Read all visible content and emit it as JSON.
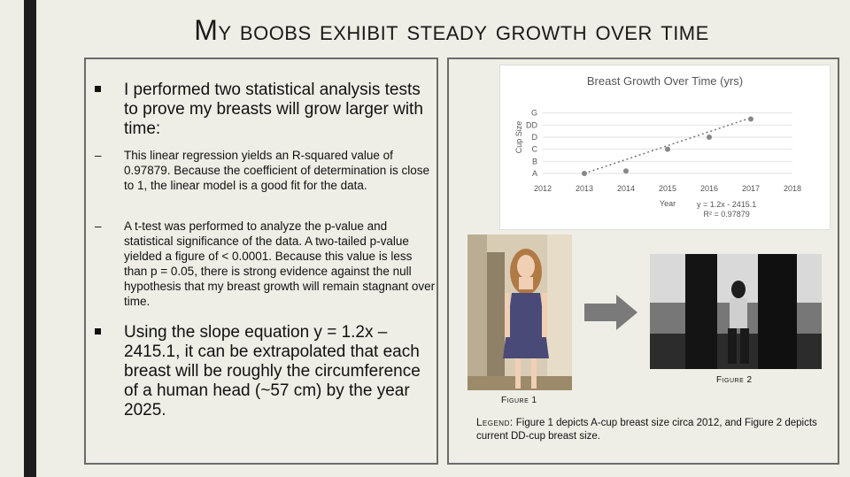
{
  "title": "My boobs exhibit steady growth over time",
  "left": {
    "bullet1": "I performed two statistical analysis tests to prove my breasts will grow larger with time:",
    "sub1": "This linear regression yields an R-squared value of 0.97879. Because the coefficient of determination is close to 1, the linear model is a good fit for the data.",
    "sub2": "A t-test was performed to analyze the p-value and statistical significance of the data. A two-tailed p-value yielded a figure of < 0.0001. Because this value is less than p = 0.05, there is strong evidence against the null hypothesis that my breast growth will remain stagnant over time.",
    "bullet2": "Using the slope equation y = 1.2x – 2415.1, it can be extrapolated that each breast will be roughly the circumference of a human head (~57 cm) by the year 2025.",
    "dash": "–"
  },
  "chart_data": {
    "type": "scatter",
    "title": "Breast Growth Over Time (yrs)",
    "xlabel": "Year",
    "ylabel": "Cup Size",
    "x_ticks": [
      "2012",
      "2013",
      "2014",
      "2015",
      "2016",
      "2017",
      "2018"
    ],
    "y_ticks": [
      "A",
      "B",
      "C",
      "D",
      "DD",
      "G"
    ],
    "xlim": [
      2012,
      2018
    ],
    "ylim": [
      0,
      6
    ],
    "x": [
      2013,
      2014,
      2015,
      2016,
      2017
    ],
    "y": [
      0,
      0.2,
      2,
      3,
      4.5
    ],
    "trendline": {
      "x": [
        2013,
        2017
      ],
      "y": [
        0,
        4.6
      ],
      "style": "dotted"
    },
    "equation": "y = 1.2x - 2415.1",
    "r2": "R² = 0.97879",
    "grid": "horizontal",
    "color": "#888888"
  },
  "figures": {
    "fig1_label": "Figure 1",
    "fig2_label": "Figure 2",
    "legend_key": "Legend:",
    "legend_text": " Figure 1 depicts A-cup breast size circa 2012, and Figure 2 depicts current DD-cup breast size."
  }
}
